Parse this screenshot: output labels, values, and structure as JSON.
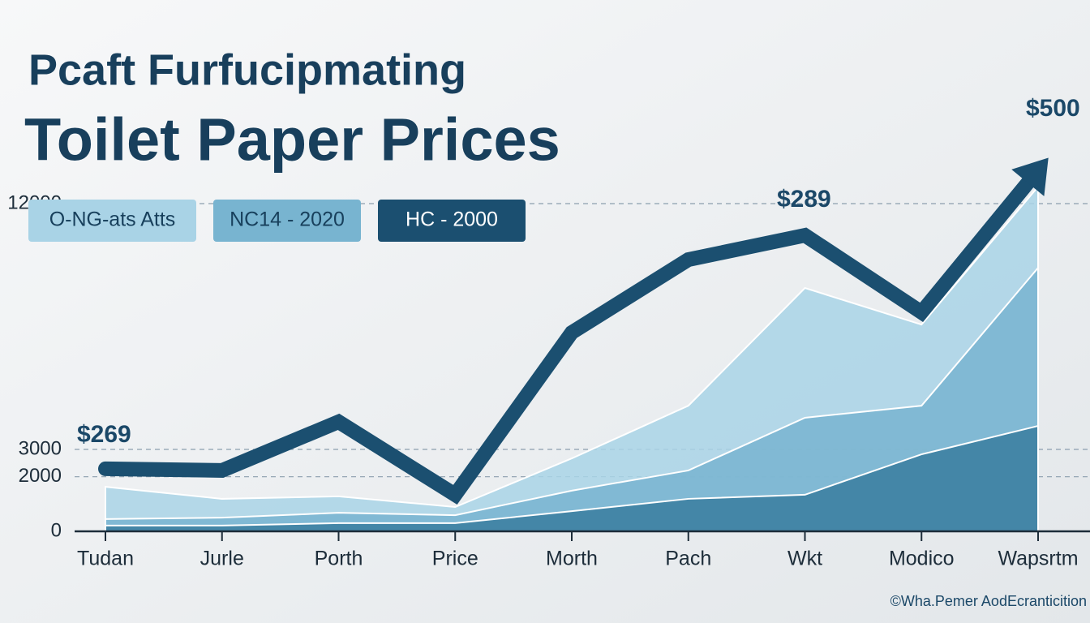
{
  "chart_data": {
    "type": "area-line",
    "subtitle": "Pcaft Furfucipmating",
    "title": "Toilet Paper Prices",
    "categories": [
      "Tudan",
      "Jurle",
      "Porth",
      "Price",
      "Morth",
      "Pach",
      "Wkt",
      "Modico",
      "Wapsrtm"
    ],
    "series": [
      {
        "name": "O-NG-ats Atts",
        "kind": "area",
        "color": "#a9d3e6",
        "values": [
          1630,
          1190,
          1280,
          890,
          2670,
          4600,
          8910,
          7570,
          12620
        ]
      },
      {
        "name": "NC14 - 2020",
        "kind": "area",
        "color": "#78b4d0",
        "values": [
          450,
          500,
          680,
          590,
          1490,
          2230,
          4160,
          4600,
          9650
        ]
      },
      {
        "kind": "area",
        "color": "#3a7d9f",
        "values": [
          210,
          210,
          300,
          300,
          740,
          1190,
          1340,
          2820,
          3860
        ]
      },
      {
        "name": "HC - 2000",
        "kind": "line",
        "color": "#1b4f70",
        "values": [
          2290,
          2230,
          4010,
          1340,
          7280,
          9950,
          10840,
          8020,
          13220
        ]
      }
    ],
    "ylim": [
      0,
      15000
    ],
    "yticks": [
      0,
      2000,
      3000,
      12000
    ],
    "grid": true,
    "annotations": [
      "$269",
      "$289",
      "$500"
    ],
    "footer": "©Wha.Pemer AodEcranticition"
  }
}
